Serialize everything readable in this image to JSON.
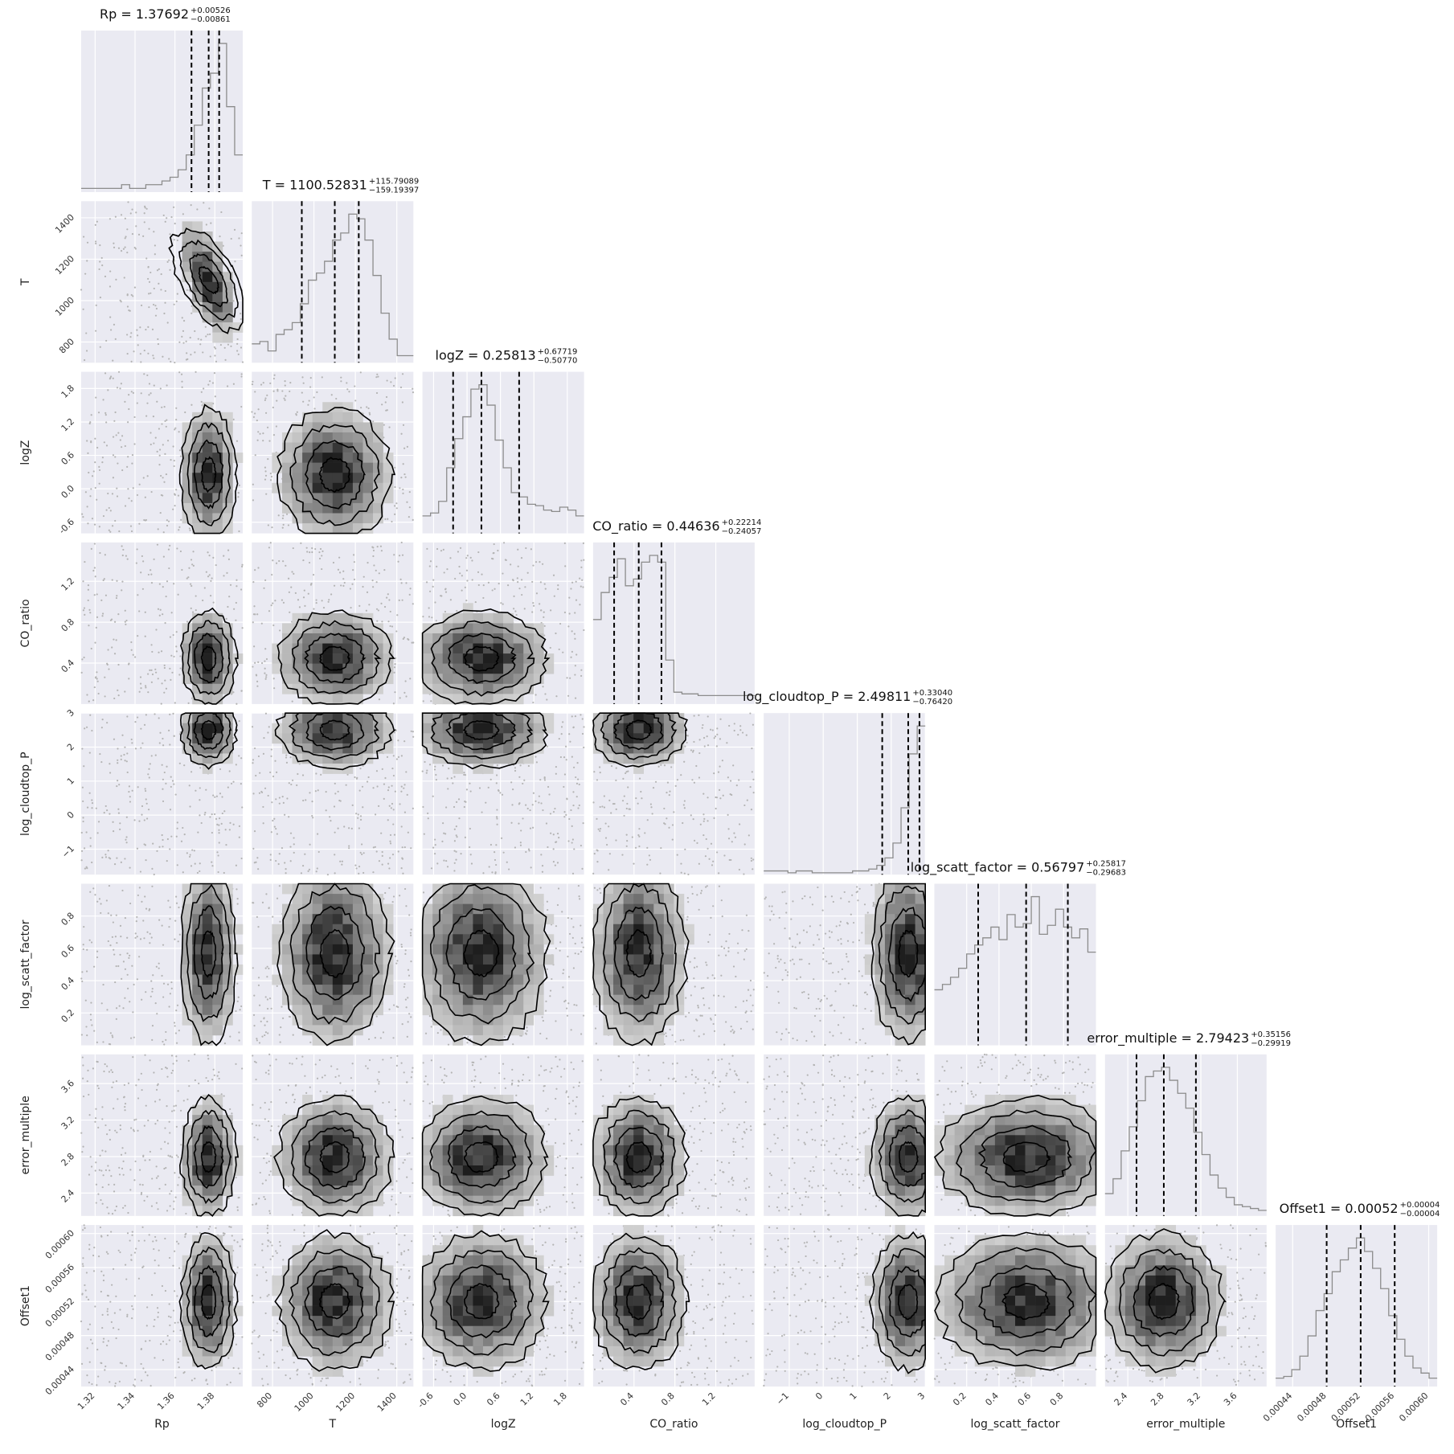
{
  "chart_data": {
    "type": "corner",
    "style": {
      "panel_bg": "#EAEAF2",
      "grid_color": "#FFFFFF",
      "hist_color": "#8C8C8C",
      "contour_color": "#000000",
      "quantile_line_color": "#000000",
      "point_color": "#B4B4B4"
    },
    "params": [
      {
        "name": "Rp",
        "label": "Rp",
        "range": [
          1.313,
          1.394
        ],
        "ticks": [
          1.32,
          1.34,
          1.36,
          1.38
        ],
        "tick_labels": [
          "1.32",
          "1.34",
          "1.36",
          "1.38"
        ],
        "median": 1.37692,
        "err_plus": 0.00526,
        "err_minus": 0.00861,
        "title_main": "Rp = 1.37692",
        "title_sup": "+0.00526",
        "title_sub": "−0.00861",
        "hist": {
          "edges_start": 1.313,
          "bin_width": 0.00405,
          "counts": [
            1,
            1,
            1,
            1,
            1,
            2,
            1,
            1,
            2,
            2,
            3,
            4,
            6,
            10,
            18,
            28,
            32,
            40,
            23,
            10
          ]
        }
      },
      {
        "name": "T",
        "label": "T",
        "range": [
          700,
          1480
        ],
        "ticks": [
          800,
          1000,
          1200,
          1400
        ],
        "tick_labels": [
          "800",
          "1000",
          "1200",
          "1400"
        ],
        "median": 1100.52831,
        "err_plus": 115.79089,
        "err_minus": 159.19397,
        "title_main": "T = 1100.52831",
        "title_sup": "+115.79089",
        "title_sub": "−159.19397",
        "hist": {
          "edges_start": 700,
          "bin_width": 39,
          "counts": [
            8,
            9,
            5,
            12,
            14,
            17,
            25,
            35,
            38,
            43,
            52,
            55,
            63,
            61,
            52,
            37,
            21,
            10,
            3,
            3
          ]
        }
      },
      {
        "name": "logZ",
        "label": "logZ",
        "range": [
          -0.8,
          2.1
        ],
        "ticks": [
          -0.6,
          0.0,
          0.6,
          1.2,
          1.8
        ],
        "tick_labels": [
          "-0.6",
          "0.0",
          "0.6",
          "1.2",
          "1.8"
        ],
        "median": 0.25813,
        "err_plus": 0.67719,
        "err_minus": 0.5077,
        "title_main": "logZ = 0.25813",
        "title_sup": "+0.67719",
        "title_sub": "−0.50770",
        "hist": {
          "edges_start": -0.8,
          "bin_width": 0.145,
          "counts": [
            12,
            14,
            22,
            45,
            65,
            80,
            99,
            102,
            88,
            64,
            45,
            28,
            25,
            20,
            19,
            16,
            15,
            18,
            16,
            12
          ]
        }
      },
      {
        "name": "CO_ratio",
        "label": "CO_ratio",
        "range": [
          0.0,
          1.58
        ],
        "ticks": [
          0.4,
          0.8,
          1.2
        ],
        "tick_labels": [
          "0.4",
          "0.8",
          "1.2"
        ],
        "median": 0.44636,
        "err_plus": 0.22214,
        "err_minus": 0.24057,
        "title_main": "CO_ratio = 0.44636",
        "title_sup": "+0.22214",
        "title_sub": "−0.24057",
        "hist": {
          "edges_start": 0.0,
          "bin_width": 0.079,
          "counts": [
            50,
            66,
            75,
            86,
            70,
            74,
            84,
            88,
            84,
            26,
            7,
            6,
            6,
            5,
            5,
            5,
            5,
            5,
            5,
            5
          ]
        }
      },
      {
        "name": "log_cloudtop_P",
        "label": "log_cloudtop_P",
        "range": [
          -1.75,
          3.0
        ],
        "ticks": [
          -1,
          0,
          1,
          2,
          3
        ],
        "tick_labels": [
          "−1",
          "0",
          "1",
          "2",
          "3"
        ],
        "median": 2.49811,
        "err_plus": 0.3304,
        "err_minus": 0.7642,
        "title_main": "log_cloudtop_P = 2.49811",
        "title_sup": "+0.33040",
        "title_sub": "−0.76420",
        "hist": {
          "edges_start": -1.75,
          "bin_width": 0.2375,
          "counts": [
            2,
            2,
            2,
            1,
            2,
            2,
            1,
            1,
            1,
            1,
            1,
            2,
            2,
            3,
            5,
            9,
            17,
            36,
            65,
            80
          ]
        }
      },
      {
        "name": "log_scatt_factor",
        "label": "log_scatt_factor",
        "range": [
          0.0,
          1.0
        ],
        "ticks": [
          0.2,
          0.4,
          0.6,
          0.8
        ],
        "tick_labels": [
          "0.2",
          "0.4",
          "0.6",
          "0.8"
        ],
        "median": 0.56797,
        "err_plus": 0.25817,
        "err_minus": 0.29683,
        "title_main": "log_scatt_factor = 0.56797",
        "title_sup": "+0.25817",
        "title_sub": "−0.29683",
        "hist": {
          "edges_start": 0.0,
          "bin_width": 0.05,
          "counts": [
            31,
            34,
            38,
            43,
            51,
            56,
            60,
            66,
            59,
            73,
            66,
            68,
            83,
            62,
            67,
            76,
            66,
            60,
            65,
            52
          ]
        }
      },
      {
        "name": "error_multiple",
        "label": "error_multiple",
        "range": [
          2.15,
          3.92
        ],
        "ticks": [
          2.4,
          2.8,
          3.2,
          3.6
        ],
        "tick_labels": [
          "2.4",
          "2.8",
          "3.2",
          "3.6"
        ],
        "median": 2.79423,
        "err_plus": 0.35156,
        "err_minus": 0.29919,
        "title_main": "error_multiple = 2.79423",
        "title_sup": "+0.35156",
        "title_sub": "−0.29919",
        "hist": {
          "edges_start": 2.15,
          "bin_width": 0.0885,
          "counts": [
            12,
            20,
            35,
            48,
            62,
            75,
            78,
            80,
            73,
            66,
            58,
            45,
            33,
            22,
            15,
            10,
            6,
            5,
            4,
            3
          ]
        }
      },
      {
        "name": "Offset1",
        "label": "Offset1",
        "range": [
          0.00042,
          0.00061
        ],
        "ticks": [
          0.00044,
          0.00048,
          0.00052,
          0.00056,
          0.0006
        ],
        "tick_labels": [
          "0.00044",
          "0.00048",
          "0.00052",
          "0.00056",
          "0.00060"
        ],
        "median": 0.00052,
        "err_plus": 4e-05,
        "err_minus": 4e-05,
        "title_main": "Offset1 = 0.00052",
        "title_sup": "+0.00004",
        "title_sub": "−0.00004",
        "hist": {
          "edges_start": 0.00042,
          "bin_width": 9.5e-06,
          "counts": [
            5,
            6,
            10,
            18,
            30,
            45,
            55,
            68,
            75,
            82,
            88,
            80,
            70,
            58,
            42,
            28,
            18,
            11,
            8,
            5
          ]
        }
      }
    ],
    "correlation": {
      "pairs": [
        {
          "x": "T",
          "y": "Rp",
          "rho": -0.6
        }
      ]
    }
  }
}
